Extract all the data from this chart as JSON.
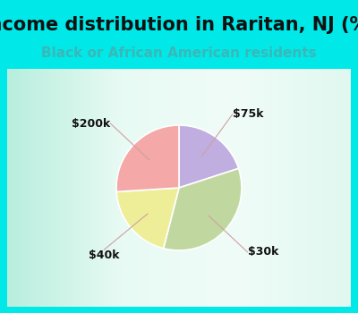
{
  "title": "Income distribution in Raritan, NJ (%)",
  "subtitle": "Black or African American residents",
  "title_fontsize": 15,
  "subtitle_fontsize": 11,
  "title_color": "#111111",
  "subtitle_color": "#3ab8b8",
  "background_color": "#00e8e8",
  "slices": [
    {
      "label": "$75k",
      "value": 20,
      "color": "#c0aee0"
    },
    {
      "label": "$30k",
      "value": 34,
      "color": "#c0d8a0"
    },
    {
      "label": "$40k",
      "value": 20,
      "color": "#eeee99"
    },
    {
      "label": "$200k",
      "value": 26,
      "color": "#f4a8a8"
    }
  ],
  "label_fontsize": 9,
  "label_color": "#111111",
  "line_color": "#d0a0a0",
  "startangle": 90
}
